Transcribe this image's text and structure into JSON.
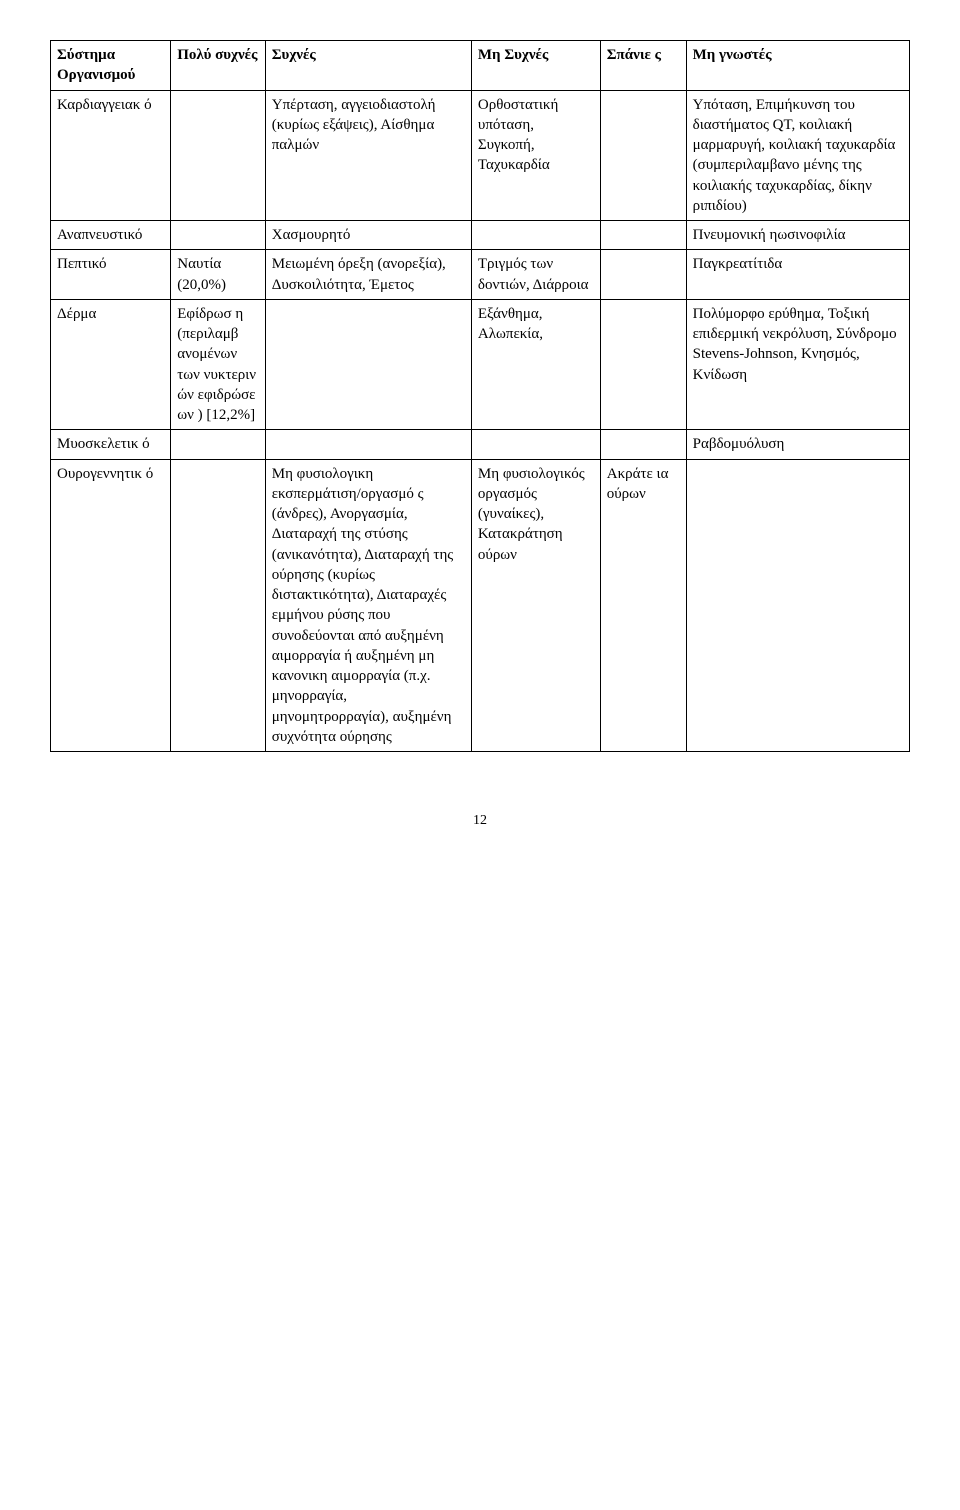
{
  "header": {
    "col0": "Σύστημα Οργανισμού",
    "col1": "Πολύ συχνές",
    "col2": "Συχνές",
    "col3": "Μη Συχνές",
    "col4": "Σπάνιε ς",
    "col5": "Μη γνωστές"
  },
  "rows": [
    {
      "c0": "Καρδιαγγειακ ό",
      "c1": "",
      "c2": "Υπέρταση, αγγειοδιαστολή (κυρίως εξάψεις), Αίσθημα παλμών",
      "c3": "Ορθοστατική υπόταση, Συγκοπή, Ταχυκαρδία",
      "c4": "",
      "c5": "Υπόταση, Επιμήκυνση του διαστήματος QT, κοιλιακή μαρμαρυγή, κοιλιακή ταχυκαρδία (συμπεριλαμβανο μένης της κοιλιακής ταχυκαρδίας, δίκην ριπιδίου)"
    },
    {
      "c0": "Αναπνευστικό",
      "c1": "",
      "c2": "Χασμουρητό",
      "c3": "",
      "c4": "",
      "c5": "Πνευμονική ηωσινοφιλία"
    },
    {
      "c0": "Πεπτικό",
      "c1": "Ναυτία (20,0%)",
      "c2": "Μειωμένη όρεξη (ανορεξία), Δυσκοιλιότητα, Έμετος",
      "c3": "Τριγμός των δοντιών, Διάρροια",
      "c4": "",
      "c5": "Παγκρεατίτιδα"
    },
    {
      "c0": "Δέρμα",
      "c1": "Εφίδρωσ η (περιλαμβ ανομένων των νυκτεριν ών εφιδρώσε ων ) [12,2%]",
      "c2": "",
      "c3": "Εξάνθημα, Αλωπεκία,",
      "c4": "",
      "c5": "Πολύμορφο ερύθημα, Τοξική επιδερμική νεκρόλυση, Σύνδρομο Stevens-Johnson, Κνησμός, Κνίδωση"
    },
    {
      "c0": "Μυοσκελετικ ό",
      "c1": "",
      "c2": "",
      "c3": "",
      "c4": "",
      "c5": "Ραβδομυόλυση"
    },
    {
      "c0": "Ουρογεννητικ ό",
      "c1": "",
      "c2": "Μη φυσιολογικη εκσπερμάτιση/οργασμό ς (άνδρες), Ανοργασμία, Διαταραχή της στύσης (ανικανότητα), Διαταραχή της ούρησης (κυρίως διστακτικότητα), Διαταραχές εμμήνου ρύσης που συνοδεύονται από αυξημένη αιμορραγία ή αυξημένη μη κανονικη αιμορραγία (π.χ. μηνορραγία, μηνομητρορραγία), αυξημένη συχνότητα ούρησης",
      "c3": "Μη φυσιολογικός οργασμός (γυναίκες), Κατακράτηση ούρων",
      "c4": "Ακράτε ια ούρων",
      "c5": ""
    }
  ],
  "page_number": "12"
}
